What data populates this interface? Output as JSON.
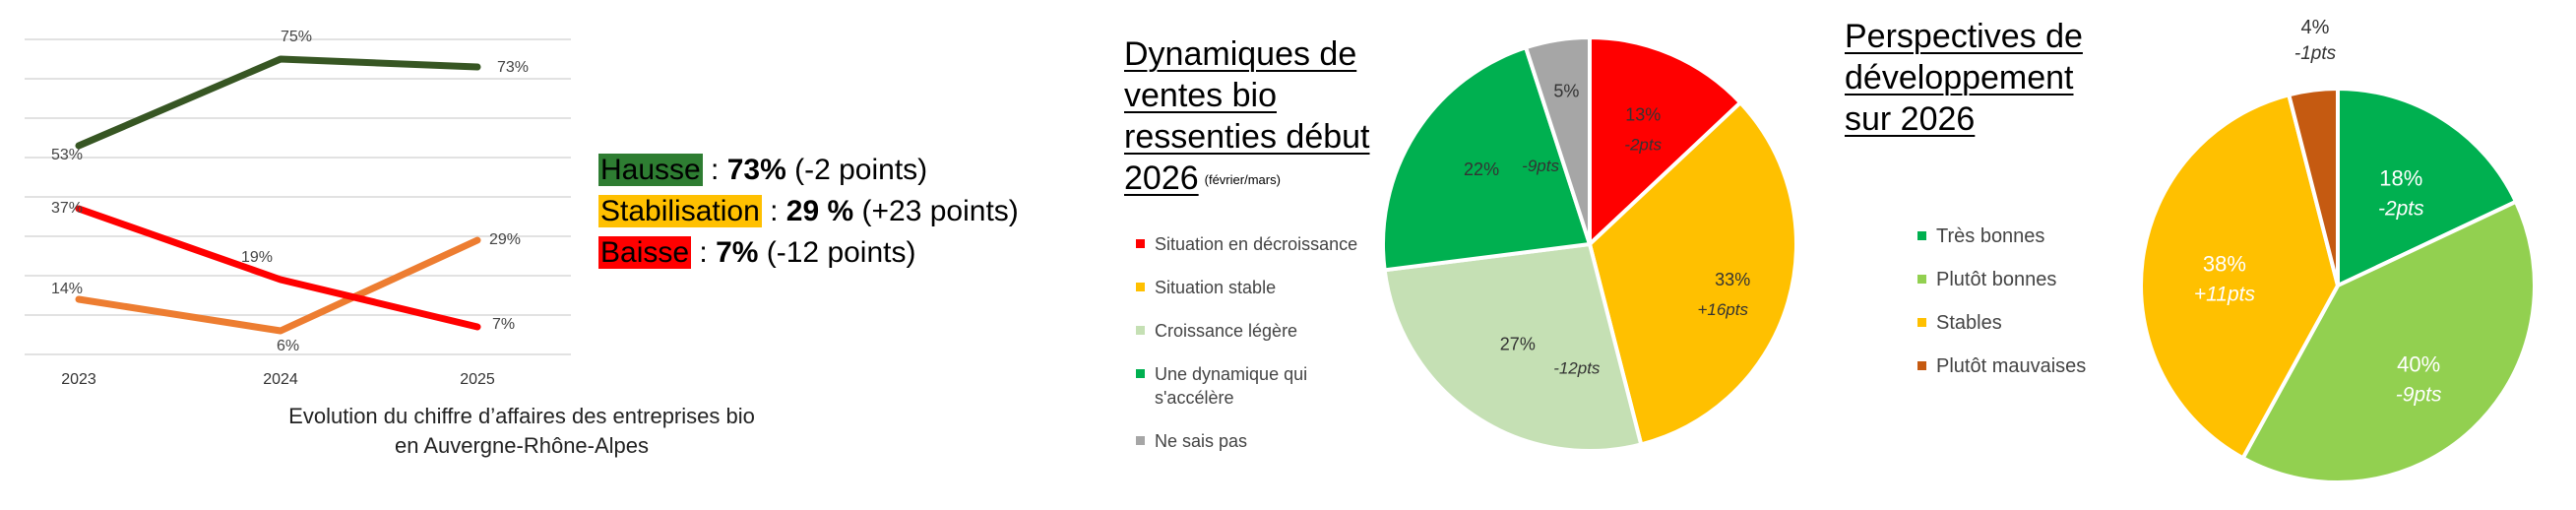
{
  "chart_data": [
    {
      "type": "line",
      "categories": [
        "2023",
        "2024",
        "2025"
      ],
      "series": [
        {
          "key": "hausse",
          "values": [
            53,
            75,
            73
          ],
          "labels": [
            "53%",
            "75%",
            "73%"
          ],
          "color": "#375623"
        },
        {
          "key": "stabilisation",
          "values": [
            14,
            6,
            29
          ],
          "labels": [
            "14%",
            "6%",
            "29%"
          ],
          "color": "#ED7D31"
        },
        {
          "key": "baisse",
          "values": [
            37,
            19,
            7
          ],
          "labels": [
            "37%",
            "19%",
            "7%"
          ],
          "color": "#FF0000"
        }
      ],
      "ylim": [
        0,
        80
      ],
      "grid": true,
      "caption_line1": "Evolution du chiffre d’affaires des entreprises bio",
      "caption_line2": "en Auvergne-Rhône-Alpes",
      "summary": [
        {
          "label": "Hausse",
          "sep": " : ",
          "value": "73%",
          "delta": " (-2 points)",
          "color": "#2E7D32"
        },
        {
          "label": "Stabilisation",
          "sep": " : ",
          "value": "29 %",
          "delta": " (+23 points)",
          "color": "#FFC000"
        },
        {
          "label": "Baisse",
          "sep": " : ",
          "value": "7%",
          "delta": " (-12 points)",
          "color": "#FF0000"
        }
      ]
    },
    {
      "type": "pie",
      "title_lines": [
        "Dynamiques de",
        "ventes bio",
        "ressenties début",
        "2026"
      ],
      "title_note": "(février/mars)",
      "slices": [
        {
          "name": "Situation en décroissance",
          "value": 13,
          "label": "13%",
          "delta": "-2pts",
          "color": "#FF0000"
        },
        {
          "name": "Situation stable",
          "value": 33,
          "label": "33%",
          "delta": "+16pts",
          "color": "#FFC000"
        },
        {
          "name": "Croissance légère",
          "value": 27,
          "label": "27%",
          "delta": "-12pts",
          "color": "#C5E0B4"
        },
        {
          "name": "Une dynamique qui s'accélère",
          "value": 22,
          "label": "22%",
          "delta": "-9pts",
          "color": "#00B050"
        },
        {
          "name": "Ne sais pas",
          "value": 5,
          "label": "5%",
          "delta": "",
          "color": "#A6A6A6"
        }
      ],
      "legend": "left"
    },
    {
      "type": "pie",
      "title_lines": [
        "Perspectives de",
        "développement",
        "sur 2026"
      ],
      "slices": [
        {
          "name": "Très bonnes",
          "value": 18,
          "label": "18%",
          "delta": "-2pts",
          "color": "#00B050"
        },
        {
          "name": "Plutôt bonnes",
          "value": 40,
          "label": "40%",
          "delta": "-9pts",
          "color": "#92D050"
        },
        {
          "name": "Stables",
          "value": 38,
          "label": "38%",
          "delta": "+11pts",
          "color": "#FFC000"
        },
        {
          "name": "Plutôt mauvaises",
          "value": 4,
          "label": "4%",
          "delta": "-1pts",
          "color": "#C55A11"
        }
      ],
      "legend": "left"
    }
  ]
}
